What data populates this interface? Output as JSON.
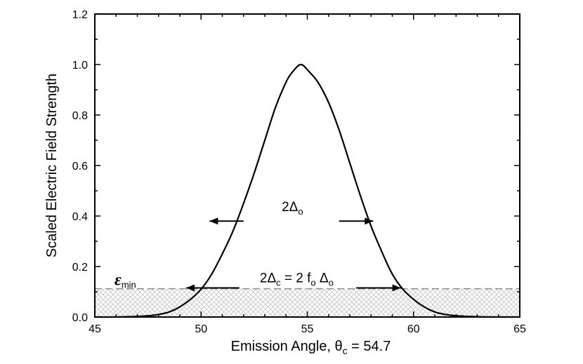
{
  "chart_data": {
    "type": "line",
    "xlabel": {
      "main": "Emission Angle, ",
      "theta": "θ",
      "sub": "c",
      "tail": " = 54.7"
    },
    "ylabel": "Scaled Electric Field Strength",
    "xlim": [
      45,
      65
    ],
    "ylim": [
      0,
      1.2
    ],
    "x_ticks": [
      "45",
      "50",
      "55",
      "60",
      "65"
    ],
    "y_ticks": [
      "0.0",
      "0.2",
      "0.4",
      "0.6",
      "0.8",
      "1.0",
      "1.2"
    ],
    "grid": false,
    "series": [
      {
        "x": [
          45,
          46,
          47,
          47.5,
          48,
          48.5,
          49,
          49.5,
          50,
          50.5,
          51,
          51.5,
          52,
          52.5,
          53,
          53.5,
          54,
          54.3,
          54.7,
          55.1,
          55.5,
          56,
          56.5,
          57,
          57.5,
          58,
          58.5,
          59,
          59.5,
          60,
          60.5,
          61,
          61.5,
          62,
          63,
          64,
          65
        ],
        "y": [
          0.0,
          0.0,
          0.002,
          0.005,
          0.01,
          0.02,
          0.04,
          0.07,
          0.11,
          0.17,
          0.25,
          0.34,
          0.45,
          0.57,
          0.7,
          0.83,
          0.93,
          0.97,
          1.0,
          0.97,
          0.93,
          0.85,
          0.74,
          0.61,
          0.48,
          0.36,
          0.26,
          0.17,
          0.11,
          0.07,
          0.04,
          0.02,
          0.01,
          0.005,
          0.001,
          0.0,
          0.0
        ]
      }
    ],
    "threshold": {
      "y": 0.112,
      "style": "dashed"
    },
    "shaded_region": {
      "y_from": 0,
      "y_to": 0.112,
      "pattern": "crosshatch"
    },
    "annotations": [
      {
        "id": "delta0",
        "text": "2Δ",
        "sub": "o",
        "y": 0.38,
        "arrow_left_x": [
          52.0,
          50.4
        ],
        "arrow_right_x": [
          56.5,
          58.1
        ]
      },
      {
        "id": "deltac",
        "text_a": "2Δ",
        "sub_a": "c",
        "text_b": " = 2 f",
        "sub_b": "o",
        "text_c": " Δ",
        "sub_c": "o",
        "y": 0.118,
        "arrow_left_x": [
          51.8,
          49.3
        ],
        "arrow_right_x": [
          57.3,
          59.4
        ]
      },
      {
        "id": "emin",
        "symbol": "ε",
        "sub": "min"
      }
    ],
    "colors": {
      "line": "#000000",
      "threshold": "#888888",
      "hatch": "#b0b0b0"
    }
  }
}
